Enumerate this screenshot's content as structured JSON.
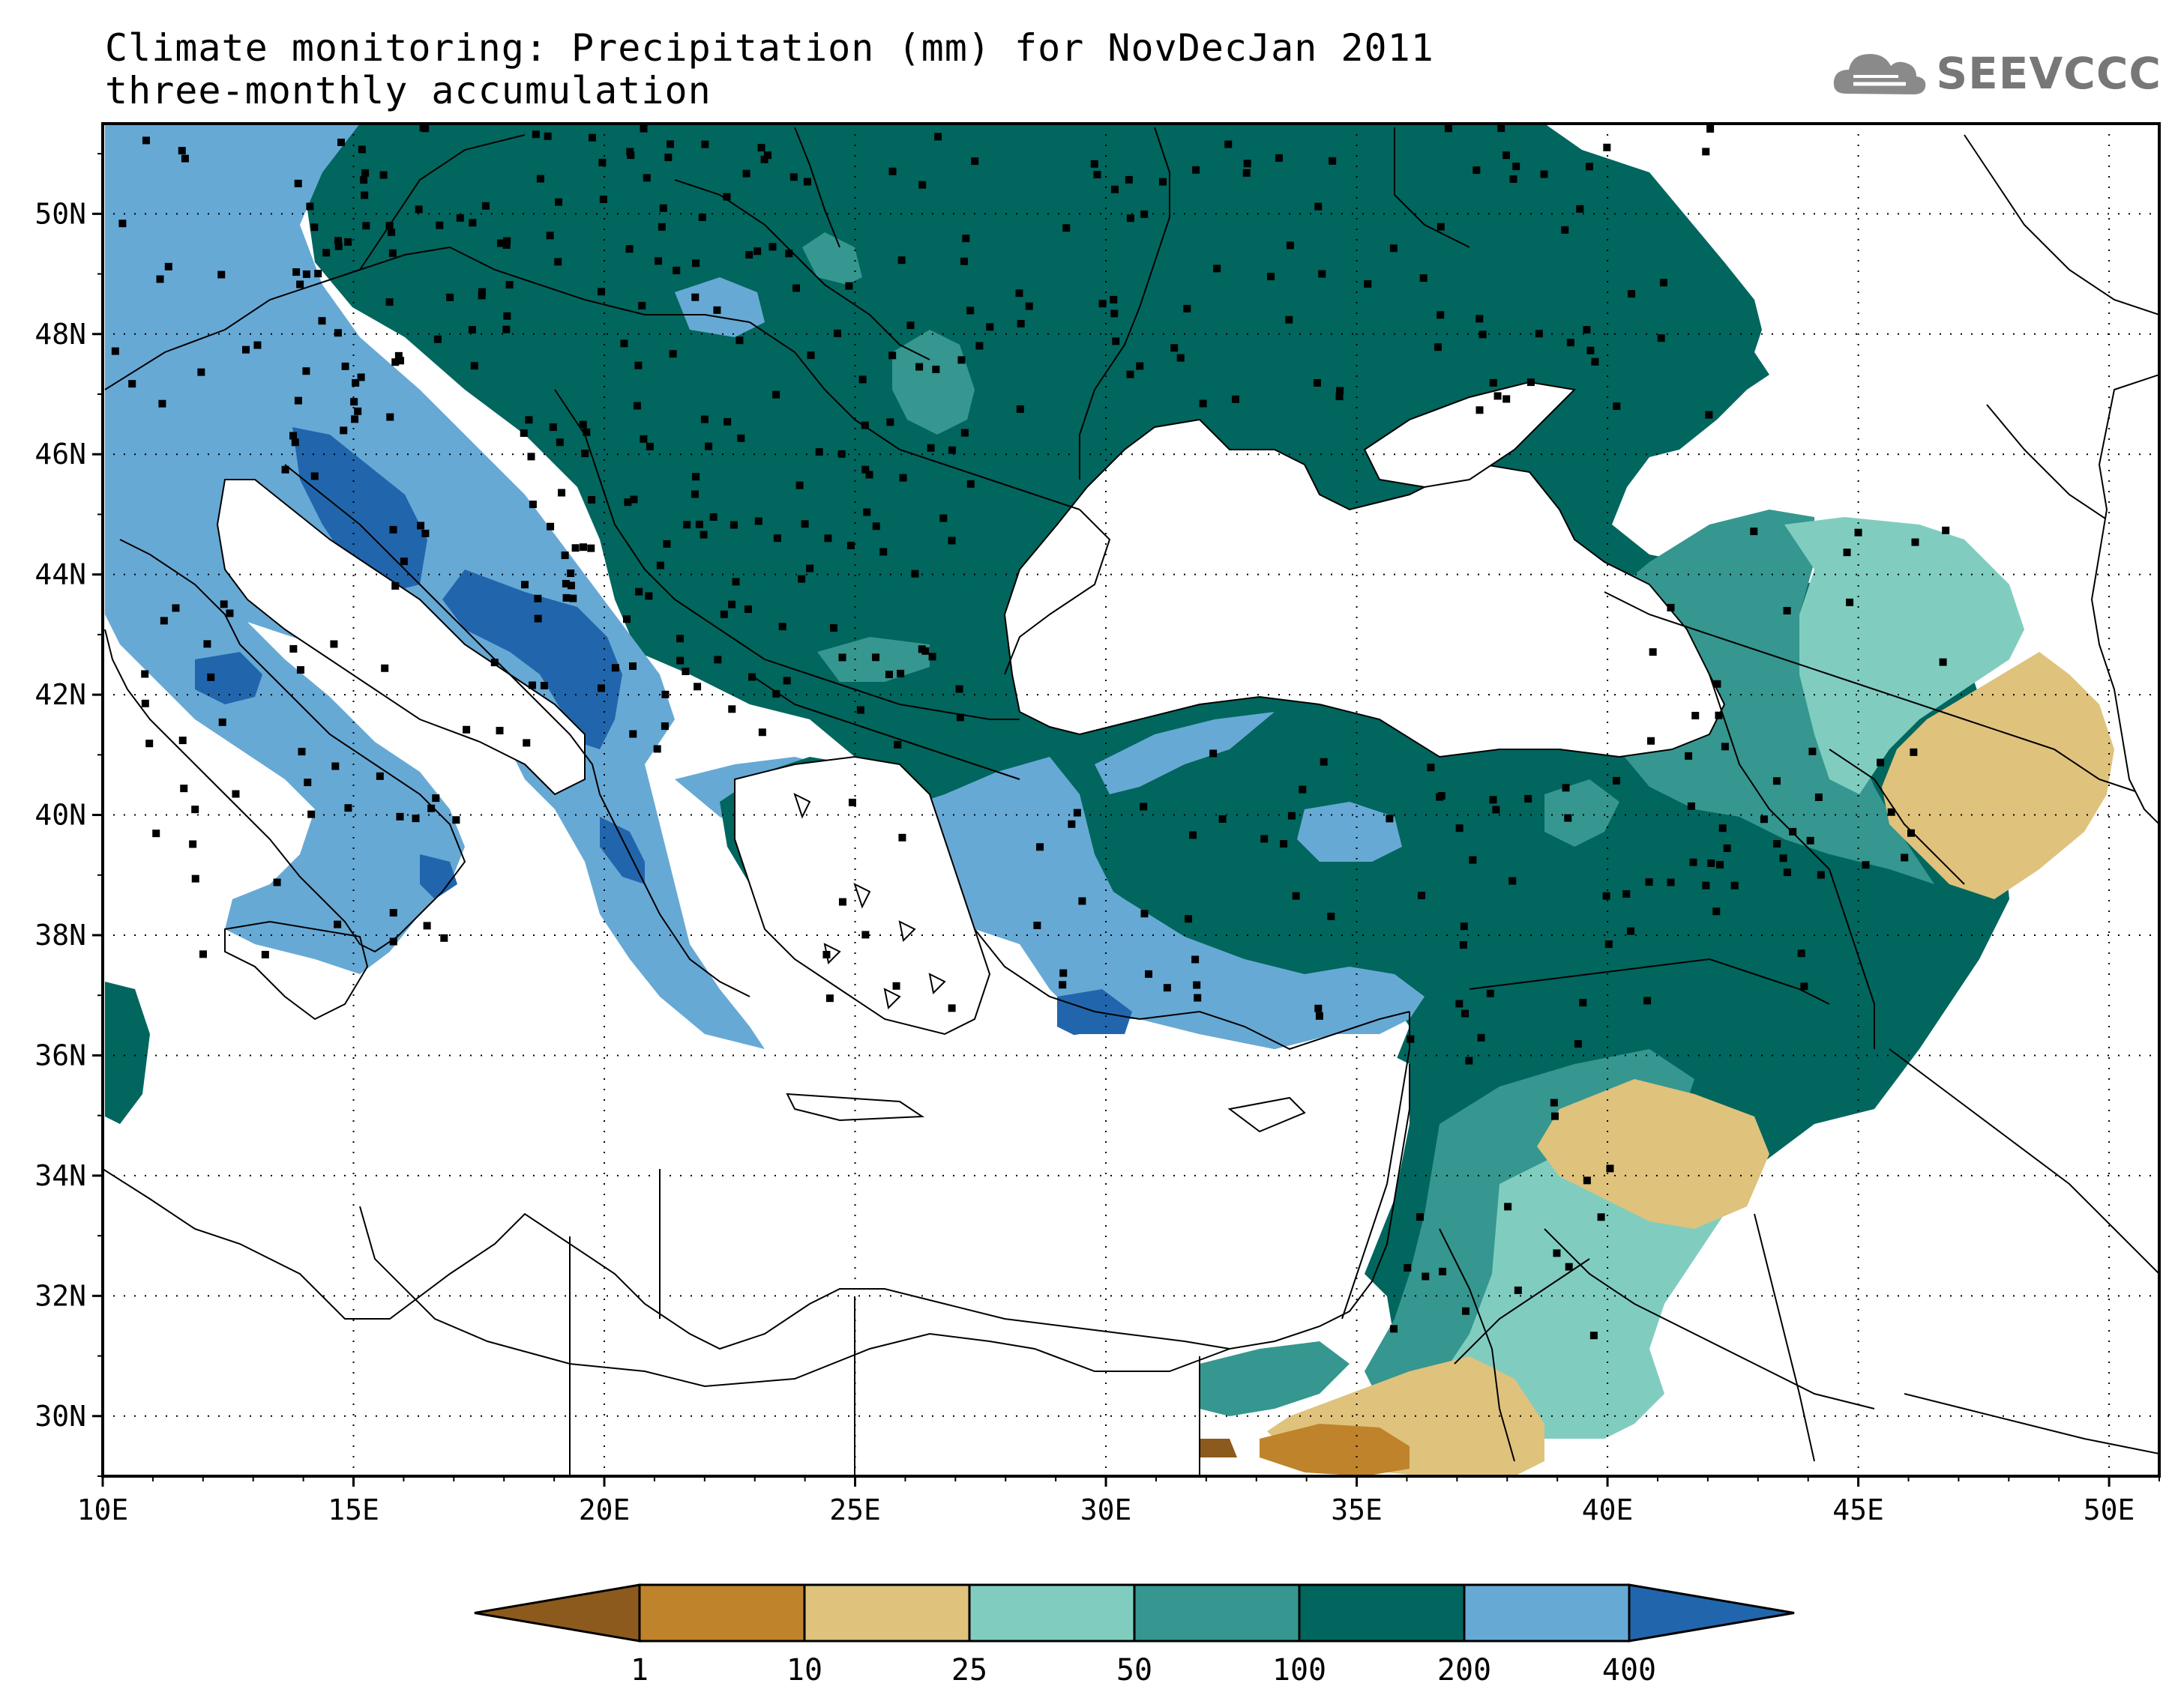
{
  "title": {
    "line1": "Climate monitoring: Precipitation (mm) for NovDecJan 2011",
    "line2": "three-monthly accumulation"
  },
  "logo": {
    "text": "SEEVCCC",
    "icon": "cloud-icon"
  },
  "map": {
    "lon_range": [
      10,
      51
    ],
    "lat_range": [
      29,
      51.5
    ],
    "lon_ticks": [
      "10E",
      "15E",
      "20E",
      "25E",
      "30E",
      "35E",
      "40E",
      "45E",
      "50E"
    ],
    "lat_ticks": [
      "30N",
      "32N",
      "34N",
      "36N",
      "38N",
      "40N",
      "42N",
      "44N",
      "46N",
      "48N",
      "50N"
    ],
    "grid": true
  },
  "legend": {
    "thresholds": [
      "1",
      "10",
      "25",
      "50",
      "100",
      "200",
      "400"
    ],
    "colors": [
      "#8c5a1c",
      "#bf832c",
      "#dfc27c",
      "#80cdc0",
      "#35978f",
      "#01665e",
      "#67a9d5",
      "#2166ac"
    ],
    "extend": "both"
  }
}
